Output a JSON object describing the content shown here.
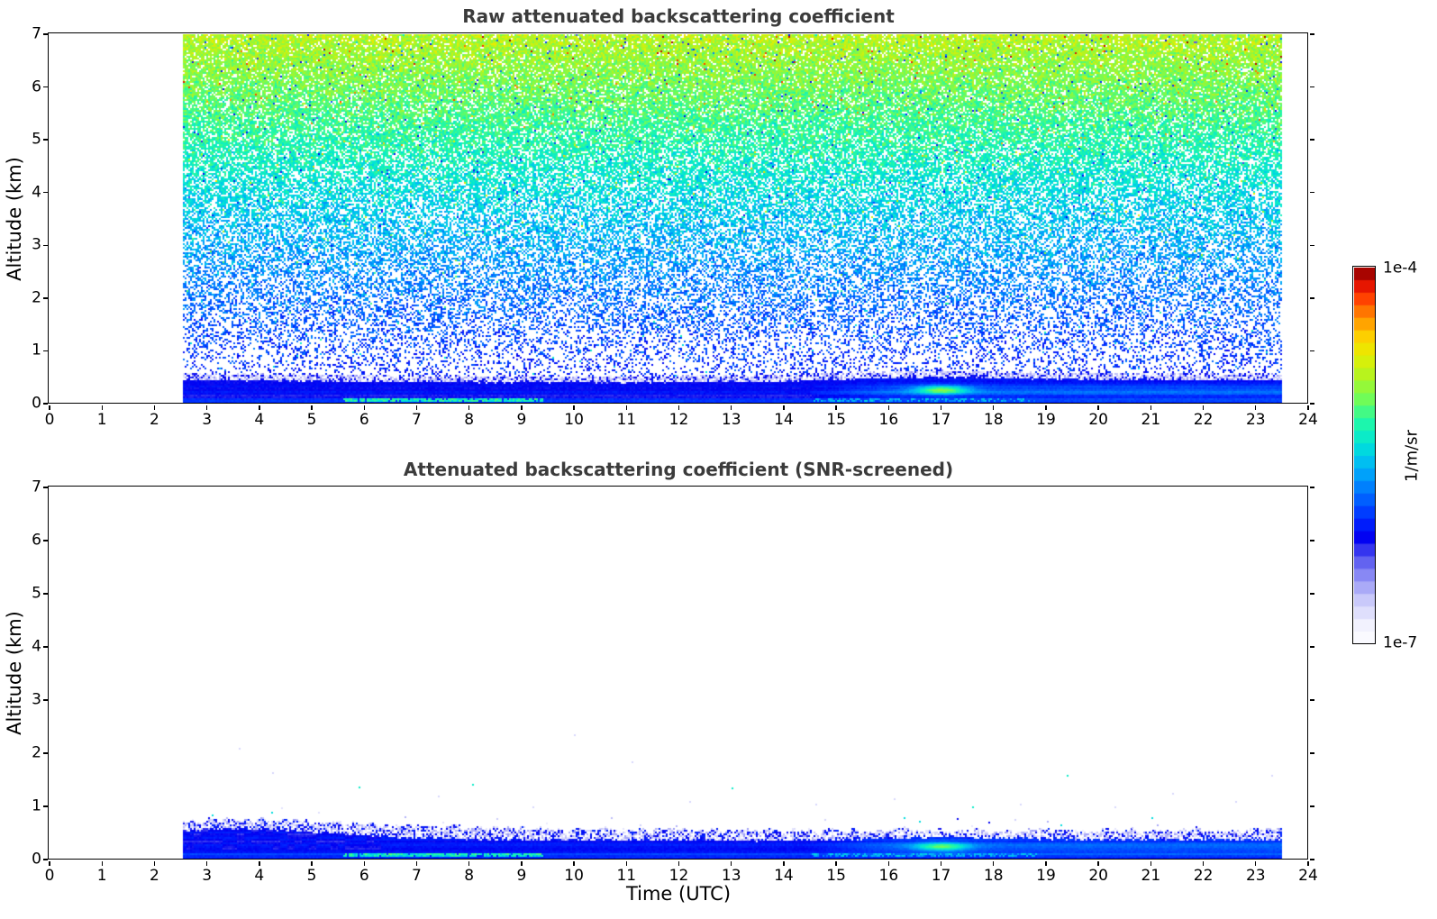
{
  "figure": {
    "background": "#ffffff"
  },
  "chart_data": [
    {
      "type": "heatmap",
      "title": "Raw attenuated backscattering coefficient",
      "xlabel": "",
      "ylabel": "Altitude (km)",
      "xlim": [
        0,
        24
      ],
      "ylim": [
        0,
        7
      ],
      "xticks": [
        0,
        1,
        2,
        3,
        4,
        5,
        6,
        7,
        8,
        9,
        10,
        11,
        12,
        13,
        14,
        15,
        16,
        17,
        18,
        19,
        20,
        21,
        22,
        23,
        24
      ],
      "yticks": [
        0,
        1,
        2,
        3,
        4,
        5,
        6,
        7
      ],
      "time_coverage_utc": [
        2.55,
        23.5
      ],
      "value_units": "1/m/sr",
      "value_range": [
        "1e-7",
        "1e-4"
      ],
      "noise": {
        "description": "Unscreened range-corrected background noise speckle fills the whole column; apparent backscatter rises with altitude from sparse blue dots near 1 km through dense cyan at 3-4 km to dense green-yellow speckle above 6 km, with rare orange/red and dark-blue outlier pixels.",
        "white_fraction_profile": [
          [
            0.6,
            0.8
          ],
          [
            1,
            0.74
          ],
          [
            1.5,
            0.64
          ],
          [
            2,
            0.56
          ],
          [
            3,
            0.46
          ],
          [
            4,
            0.36
          ],
          [
            5,
            0.24
          ],
          [
            6,
            0.15
          ],
          [
            7,
            0.1
          ]
        ],
        "value_profile": {
          "v0": 0.3,
          "v1": 0.42,
          "exp": 1.15,
          "sigma": 0.085,
          "outlier_p": 0.035
        }
      },
      "boundary_layer": {
        "description": "Solid blue boundary-layer signal below about 0.5 km over the full measurement period 02:33-23:30 UTC.",
        "top_km_profile": [
          [
            2.55,
            0.45
          ],
          [
            5,
            0.43
          ],
          [
            8,
            0.4
          ],
          [
            11,
            0.4
          ],
          [
            14,
            0.42
          ],
          [
            15.5,
            0.48
          ],
          [
            17,
            0.5
          ],
          [
            19,
            0.47
          ],
          [
            21,
            0.45
          ],
          [
            23.5,
            0.44
          ]
        ],
        "fringe_km": 0.12,
        "surface_cyan_streak_utc": [
          5.6,
          9.4
        ],
        "secondary_streak_utc": [
          14.5,
          18.8
        ],
        "cyan_patch": {
          "time_utc": [
            16.5,
            17.5
          ],
          "altitude_km": [
            0.18,
            0.33
          ]
        }
      }
    },
    {
      "type": "heatmap",
      "title": "Attenuated backscattering coefficient (SNR-screened)",
      "xlabel": "Time (UTC)",
      "ylabel": "Altitude (km)",
      "xlim": [
        0,
        24
      ],
      "ylim": [
        0,
        7
      ],
      "xticks": [
        0,
        1,
        2,
        3,
        4,
        5,
        6,
        7,
        8,
        9,
        10,
        11,
        12,
        13,
        14,
        15,
        16,
        17,
        18,
        19,
        20,
        21,
        22,
        23,
        24
      ],
      "yticks": [
        0,
        1,
        2,
        3,
        4,
        5,
        6,
        7
      ],
      "time_coverage_utc": [
        2.55,
        23.5
      ],
      "value_units": "1/m/sr",
      "value_range": [
        "1e-7",
        "1e-4"
      ],
      "layer": {
        "description": "After SNR screening only the boundary layer survives: a ragged pale-lavender fringe (top near 0.55-0.78 km) over a solid blue layer, a bright cyan surface streak from about 05:36 to 09:24 UTC, a cyan-green patch near 17 UTC at ~0.25 km, and a few isolated faint echoes between 1 and 2.4 km.",
        "edge_km_profile": [
          [
            2.55,
            0.7
          ],
          [
            3.5,
            0.76
          ],
          [
            4.5,
            0.74
          ],
          [
            5.5,
            0.7
          ],
          [
            6.5,
            0.66
          ],
          [
            8,
            0.6
          ],
          [
            10,
            0.56
          ],
          [
            12,
            0.55
          ],
          [
            14,
            0.54
          ],
          [
            16,
            0.56
          ],
          [
            18,
            0.54
          ],
          [
            20,
            0.55
          ],
          [
            22,
            0.56
          ],
          [
            23.5,
            0.58
          ]
        ],
        "solid_top_km_profile": [
          [
            2.55,
            0.55
          ],
          [
            3.5,
            0.58
          ],
          [
            4.5,
            0.55
          ],
          [
            5.5,
            0.5
          ],
          [
            6.5,
            0.42
          ],
          [
            8,
            0.38
          ],
          [
            10,
            0.36
          ],
          [
            12,
            0.37
          ],
          [
            14,
            0.36
          ],
          [
            16,
            0.4
          ],
          [
            17,
            0.42
          ],
          [
            18,
            0.4
          ],
          [
            20,
            0.38
          ],
          [
            22,
            0.37
          ],
          [
            23.5,
            0.38
          ]
        ],
        "surface_cyan_streak_utc": [
          5.6,
          9.4
        ],
        "secondary_streak_utc": [
          14.5,
          18.8
        ],
        "cyan_patch": {
          "time_utc": [
            16.5,
            17.5
          ],
          "altitude_km": [
            0.18,
            0.3
          ]
        },
        "isolated_echoes": [
          {
            "t": 3.6,
            "a": 2.1,
            "c": "lavender"
          },
          {
            "t": 4.25,
            "a": 1.65,
            "c": "lavender"
          },
          {
            "t": 5.9,
            "a": 1.38,
            "c": "cyan"
          },
          {
            "t": 7.4,
            "a": 1.2,
            "c": "lavender"
          },
          {
            "t": 8.05,
            "a": 1.42,
            "c": "cyan"
          },
          {
            "t": 9.2,
            "a": 1.0,
            "c": "lavender"
          },
          {
            "t": 10.0,
            "a": 2.35,
            "c": "lavender"
          },
          {
            "t": 11.1,
            "a": 1.85,
            "c": "lavender"
          },
          {
            "t": 12.2,
            "a": 1.1,
            "c": "lavender"
          },
          {
            "t": 13.0,
            "a": 1.35,
            "c": "cyan"
          },
          {
            "t": 14.6,
            "a": 1.05,
            "c": "lavender"
          },
          {
            "t": 16.1,
            "a": 1.15,
            "c": "lavender"
          },
          {
            "t": 17.3,
            "a": 0.78,
            "c": "dark"
          },
          {
            "t": 17.6,
            "a": 1.0,
            "c": "cyan"
          },
          {
            "t": 17.9,
            "a": 0.72,
            "c": "dark"
          },
          {
            "t": 18.5,
            "a": 1.05,
            "c": "lavender"
          },
          {
            "t": 19.4,
            "a": 1.6,
            "c": "cyan"
          },
          {
            "t": 20.3,
            "a": 1.0,
            "c": "lavender"
          },
          {
            "t": 21.4,
            "a": 1.25,
            "c": "lavender"
          },
          {
            "t": 22.6,
            "a": 1.1,
            "c": "lavender"
          },
          {
            "t": 23.3,
            "a": 1.6,
            "c": "lavender"
          }
        ]
      }
    }
  ],
  "colorbar": {
    "label": "1/m/sr",
    "top_label": "1e-4",
    "bottom_label": "1e-7",
    "scale": "log",
    "vmin": "1e-7",
    "vmax": "1e-4",
    "levels": 30,
    "colormap_stops": [
      [
        0.0,
        "#ffffff"
      ],
      [
        0.05,
        "#f2f2fe"
      ],
      [
        0.11,
        "#d0d0fa"
      ],
      [
        0.17,
        "#9898f6"
      ],
      [
        0.23,
        "#5555ee"
      ],
      [
        0.285,
        "#0000f2"
      ],
      [
        0.33,
        "#0028ff"
      ],
      [
        0.4,
        "#0070ff"
      ],
      [
        0.47,
        "#00b4f8"
      ],
      [
        0.53,
        "#00e4d8"
      ],
      [
        0.59,
        "#20f8a8"
      ],
      [
        0.65,
        "#70fc58"
      ],
      [
        0.71,
        "#b2f420"
      ],
      [
        0.77,
        "#e8ee00"
      ],
      [
        0.82,
        "#ffcc00"
      ],
      [
        0.87,
        "#ff8800"
      ],
      [
        0.92,
        "#ff3c00"
      ],
      [
        0.96,
        "#dd0800"
      ],
      [
        1.0,
        "#7f0000"
      ]
    ]
  }
}
